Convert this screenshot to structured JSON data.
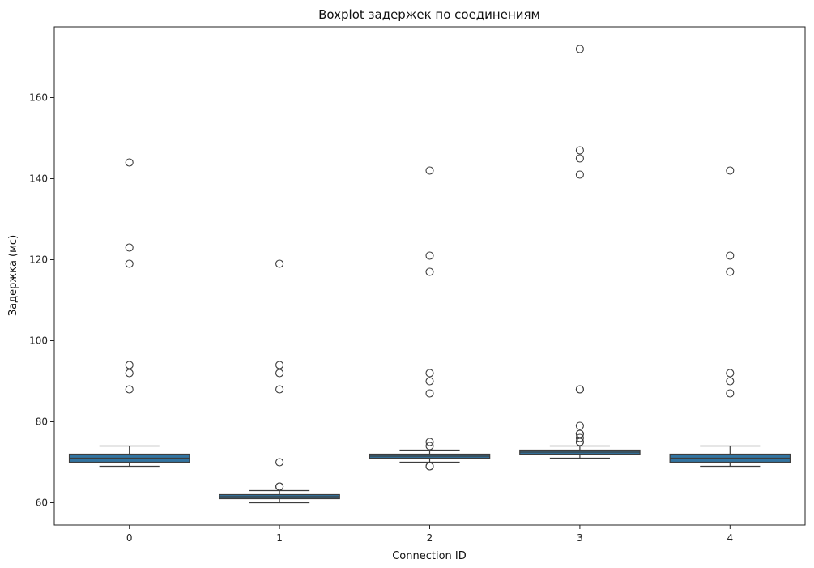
{
  "chart_data": {
    "type": "boxplot",
    "title": "Boxplot задержек по соединениям",
    "xlabel": "Connection ID",
    "ylabel": "Задержка (мс)",
    "ylim": [
      54.5,
      177.5
    ],
    "yticks": [
      60,
      80,
      100,
      120,
      140,
      160
    ],
    "categories": [
      "0",
      "1",
      "2",
      "3",
      "4"
    ],
    "box_color": "#3274a1",
    "line_color": "#3d3d3d",
    "grid": false,
    "boxes": [
      {
        "category": "0",
        "whisker_low": 69,
        "q1": 70,
        "median": 71,
        "q3": 72,
        "whisker_high": 74,
        "outliers": [
          144,
          123,
          119,
          94,
          92,
          88
        ]
      },
      {
        "category": "1",
        "whisker_low": 60,
        "q1": 61,
        "median": 61.5,
        "q3": 62,
        "whisker_high": 63,
        "outliers": [
          119,
          94,
          92,
          88,
          70,
          64,
          64
        ]
      },
      {
        "category": "2",
        "whisker_low": 70,
        "q1": 71,
        "median": 71.5,
        "q3": 72,
        "whisker_high": 73,
        "outliers": [
          142,
          121,
          117,
          92,
          90,
          87,
          75,
          74,
          69,
          69
        ]
      },
      {
        "category": "3",
        "whisker_low": 71,
        "q1": 72,
        "median": 72.5,
        "q3": 73,
        "whisker_high": 74,
        "outliers": [
          172,
          147,
          145,
          141,
          88,
          88,
          79,
          77,
          77,
          76,
          75,
          75
        ]
      },
      {
        "category": "4",
        "whisker_low": 69,
        "q1": 70,
        "median": 71,
        "q3": 72,
        "whisker_high": 74,
        "outliers": [
          142,
          121,
          117,
          92,
          90,
          87
        ]
      }
    ]
  }
}
